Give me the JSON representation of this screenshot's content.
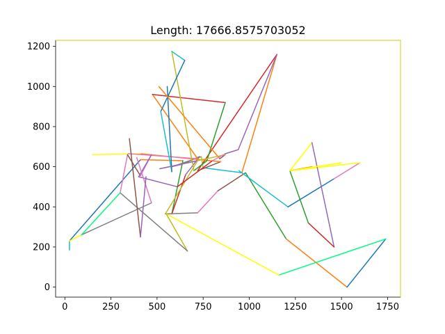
{
  "chart_data": {
    "type": "line",
    "title": "Length: 17666.8575703052",
    "xlabel": "",
    "ylabel": "",
    "xlim": [
      -50,
      1820
    ],
    "ylim": [
      -50,
      1230
    ],
    "x_ticks": [
      0,
      250,
      500,
      750,
      1000,
      1250,
      1500,
      1750
    ],
    "y_ticks": [
      0,
      200,
      400,
      600,
      800,
      1000,
      1200
    ],
    "grid": false,
    "route_x": [
      25,
      25,
      90,
      495,
      660,
      410,
      470,
      480,
      870,
      720,
      715,
      795,
      805,
      750,
      645,
      470,
      410,
      370,
      340,
      420,
      560,
      720,
      755,
      700,
      645,
      615,
      575,
      555,
      670,
      660,
      675,
      845,
      830,
      735,
      730,
      575,
      495,
      470,
      330,
      330,
      370,
      290,
      90,
      25,
      25,
      290,
      1150,
      1150,
      1150,
      940,
      720,
      705,
      870,
      880,
      1250,
      1400,
      1610,
      1220,
      1220,
      1320,
      1460,
      1460,
      1340,
      1210,
      965,
      830,
      730,
      1245,
      1245,
      1335,
      1335,
      1220,
      1210,
      1530,
      1740,
      1740,
      1740,
      1740,
      1740,
      1740,
      1740,
      1740,
      1740,
      1740,
      1740,
      1740,
      1740,
      1740,
      1740,
      1740,
      1740,
      1740,
      1740,
      1740,
      1740,
      1740,
      1740,
      1740,
      1740,
      1740,
      1740,
      1740,
      1740,
      1740,
      1740,
      1740,
      1740,
      1740,
      1740,
      1740,
      1740,
      1740,
      1740,
      1740,
      1740,
      1740,
      1740,
      1740,
      1740,
      1740,
      1740,
      1740,
      1740,
      1740,
      1740,
      1740,
      1740
    ],
    "segments": [
      {
        "x": [
          25,
          25
        ],
        "y": [
          185,
          230
        ],
        "color": "#17becf"
      },
      {
        "x": [
          25,
          410
        ],
        "y": [
          230,
          635
        ],
        "color": "#1f77b4"
      },
      {
        "x": [
          410,
          640
        ],
        "y": [
          635,
          630
        ],
        "color": "#ff7f0e"
      },
      {
        "x": [
          640,
          580
        ],
        "y": [
          630,
          365
        ],
        "color": "#2ca02c"
      },
      {
        "x": [
          580,
          655
        ],
        "y": [
          365,
          560
        ],
        "color": "#d62728"
      },
      {
        "x": [
          655,
          730
        ],
        "y": [
          560,
          650
        ],
        "color": "#9467bd"
      },
      {
        "x": [
          730,
          630
        ],
        "y": [
          650,
          610
        ],
        "color": "#8c564b"
      },
      {
        "x": [
          630,
          580
        ],
        "y": [
          610,
          600
        ],
        "color": "#e377c2"
      },
      {
        "x": [
          580,
          740
        ],
        "y": [
          600,
          650
        ],
        "color": "#7f7f7f"
      },
      {
        "x": [
          740,
          750
        ],
        "y": [
          650,
          595
        ],
        "color": "#bcbd22"
      },
      {
        "x": [
          750,
          960
        ],
        "y": [
          595,
          570
        ],
        "color": "#17becf"
      },
      {
        "x": [
          960,
          1150
        ],
        "y": [
          570,
          1160
        ],
        "color": "#ff7f0e"
      },
      {
        "x": [
          1150,
          720
        ],
        "y": [
          1160,
          580
        ],
        "color": "#d62728"
      },
      {
        "x": [
          720,
          845
        ],
        "y": [
          580,
          625
        ],
        "color": "#8c564b"
      },
      {
        "x": [
          845,
          410
        ],
        "y": [
          625,
          665
        ],
        "color": "#ff7f0e"
      },
      {
        "x": [
          410,
          150
        ],
        "y": [
          665,
          660
        ],
        "color": "#ffff00"
      },
      {
        "x": [
          345,
          720
        ],
        "y": [
          665,
          640
        ],
        "color": "#e377c2"
      },
      {
        "x": [
          720,
          475
        ],
        "y": [
          640,
          960
        ],
        "color": "#ff7f0e"
      },
      {
        "x": [
          475,
          870
        ],
        "y": [
          960,
          920
        ],
        "color": "#d62728"
      },
      {
        "x": [
          870,
          770
        ],
        "y": [
          920,
          630
        ],
        "color": "#2ca02c"
      },
      {
        "x": [
          770,
          700
        ],
        "y": [
          630,
          580
        ],
        "color": "#2ca02c"
      },
      {
        "x": [
          700,
          580
        ],
        "y": [
          580,
          1175
        ],
        "color": "#bcbd22"
      },
      {
        "x": [
          580,
          650
        ],
        "y": [
          1175,
          1130
        ],
        "color": "#17becf"
      },
      {
        "x": [
          650,
          520
        ],
        "y": [
          1130,
          875
        ],
        "color": "#1f77b4"
      },
      {
        "x": [
          520,
          580
        ],
        "y": [
          875,
          575
        ],
        "color": "#17becf"
      },
      {
        "x": [
          580,
          555
        ],
        "y": [
          575,
          1000
        ],
        "color": "#1f77b4"
      },
      {
        "x": [
          510,
          840
        ],
        "y": [
          1000,
          640
        ],
        "color": "#ff7f0e"
      },
      {
        "x": [
          840,
          870
        ],
        "y": [
          640,
          660
        ],
        "color": "#8c564b"
      },
      {
        "x": [
          870,
          515
        ],
        "y": [
          660,
          590
        ],
        "color": "#bcbd22"
      },
      {
        "x": [
          515,
          720
        ],
        "y": [
          590,
          630
        ],
        "color": "#9467bd"
      },
      {
        "x": [
          720,
          545
        ],
        "y": [
          630,
          365
        ],
        "color": "#bcbd22"
      },
      {
        "x": [
          545,
          720
        ],
        "y": [
          365,
          370
        ],
        "color": "#7f7f7f"
      },
      {
        "x": [
          720,
          830
        ],
        "y": [
          370,
          480
        ],
        "color": "#e377c2"
      },
      {
        "x": [
          830,
          980
        ],
        "y": [
          480,
          570
        ],
        "color": "#8c564b"
      },
      {
        "x": [
          980,
          1200
        ],
        "y": [
          570,
          240
        ],
        "color": "#2ca02c"
      },
      {
        "x": [
          1200,
          1530
        ],
        "y": [
          240,
          0
        ],
        "color": "#ff7f0e"
      },
      {
        "x": [
          1530,
          1740
        ],
        "y": [
          0,
          240
        ],
        "color": "#1f77b4"
      },
      {
        "x": [
          1740,
          1160
        ],
        "y": [
          240,
          60
        ],
        "color": "#00ff7f"
      },
      {
        "x": [
          1160,
          550
        ],
        "y": [
          60,
          365
        ],
        "color": "#ffff00"
      },
      {
        "x": [
          550,
          665
        ],
        "y": [
          365,
          180
        ],
        "color": "#bcbd22"
      },
      {
        "x": [
          665,
          300
        ],
        "y": [
          180,
          470
        ],
        "color": "#7f7f7f"
      },
      {
        "x": [
          300,
          340
        ],
        "y": [
          470,
          660
        ],
        "color": "#e377c2"
      },
      {
        "x": [
          340,
          410
        ],
        "y": [
          660,
          555
        ],
        "color": "#8c564b"
      },
      {
        "x": [
          410,
          470
        ],
        "y": [
          555,
          660
        ],
        "color": "#e377c2"
      },
      {
        "x": [
          470,
          400
        ],
        "y": [
          660,
          550
        ],
        "color": "#9467bd"
      },
      {
        "x": [
          400,
          610
        ],
        "y": [
          550,
          500
        ],
        "color": "#9467bd"
      },
      {
        "x": [
          610,
          800
        ],
        "y": [
          500,
          630
        ],
        "color": "#d62728"
      },
      {
        "x": [
          800,
          870
        ],
        "y": [
          630,
          665
        ],
        "color": "#e377c2"
      },
      {
        "x": [
          870,
          940
        ],
        "y": [
          665,
          685
        ],
        "color": "#9467bd"
      },
      {
        "x": [
          940,
          1150
        ],
        "y": [
          685,
          1160
        ],
        "color": "#9467bd"
      },
      {
        "x": [
          945,
          1210
        ],
        "y": [
          580,
          400
        ],
        "color": "#17becf"
      },
      {
        "x": [
          1210,
          1460
        ],
        "y": [
          400,
          540
        ],
        "color": "#1f77b4"
      },
      {
        "x": [
          1460,
          1600
        ],
        "y": [
          540,
          620
        ],
        "color": "#e377c2"
      },
      {
        "x": [
          1600,
          1220
        ],
        "y": [
          620,
          580
        ],
        "color": "#ffff00"
      },
      {
        "x": [
          1220,
          1340
        ],
        "y": [
          580,
          720
        ],
        "color": "#ffff00"
      },
      {
        "x": [
          1220,
          1340
        ],
        "y": [
          580,
          600
        ],
        "color": "#ff7f0e"
      },
      {
        "x": [
          1340,
          1460
        ],
        "y": [
          720,
          200
        ],
        "color": "#9467bd"
      },
      {
        "x": [
          1460,
          1320
        ],
        "y": [
          200,
          320
        ],
        "color": "#d62728"
      },
      {
        "x": [
          1320,
          1220
        ],
        "y": [
          320,
          580
        ],
        "color": "#2ca02c"
      },
      {
        "x": [
          90,
          470
        ],
        "y": [
          260,
          420
        ],
        "color": "#7f7f7f"
      },
      {
        "x": [
          470,
          390
        ],
        "y": [
          420,
          645
        ],
        "color": "#e377c2"
      },
      {
        "x": [
          410,
          350
        ],
        "y": [
          250,
          740
        ],
        "color": "#8c564b"
      },
      {
        "x": [
          410,
          440
        ],
        "y": [
          250,
          550
        ],
        "color": "#9467bd"
      },
      {
        "x": [
          25,
          90
        ],
        "y": [
          230,
          260
        ],
        "color": "#ffff00"
      },
      {
        "x": [
          90,
          300
        ],
        "y": [
          260,
          470
        ],
        "color": "#00ff7f"
      },
      {
        "x": [
          1220,
          1500
        ],
        "y": [
          580,
          620
        ],
        "color": "#ffff00"
      }
    ]
  },
  "colors": {
    "background": "#ffffff",
    "axes": "#000000",
    "axes_frame_accent": "#ffff00"
  }
}
